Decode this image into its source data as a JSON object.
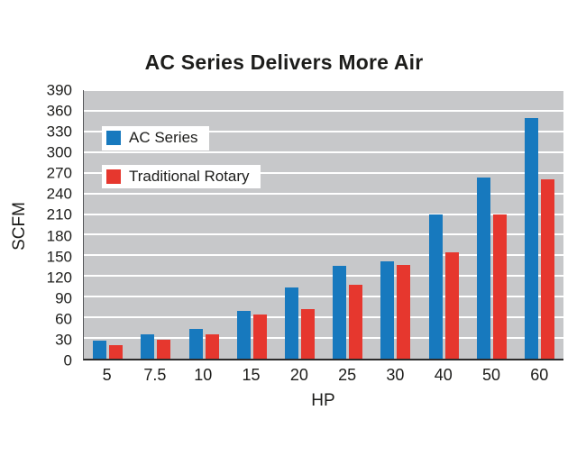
{
  "title": "AC Series Delivers More Air",
  "colors": {
    "ac_series_blue": "#1779be",
    "traditional_rotary_red": "#e6372e",
    "plot_background": "#c7c8ca",
    "gridline": "#ffffff",
    "text": "#1d1d1b"
  },
  "chart_data": {
    "type": "bar",
    "title": "AC Series Delivers More Air",
    "xlabel": "HP",
    "ylabel": "SCFM",
    "categories": [
      "5",
      "7.5",
      "10",
      "15",
      "20",
      "25",
      "30",
      "40",
      "50",
      "60"
    ],
    "series": [
      {
        "name": "AC Series",
        "color": "#1779be",
        "values": [
          26,
          35,
          43,
          70,
          103,
          135,
          142,
          210,
          263,
          350
        ]
      },
      {
        "name": "Traditional Rotary",
        "color": "#e6372e",
        "values": [
          20,
          28,
          36,
          64,
          72,
          107,
          136,
          155,
          210,
          260
        ]
      }
    ],
    "ylim": [
      0,
      390
    ],
    "ytick_step": 30,
    "grid": true,
    "legend_position": "top-left-inside"
  }
}
